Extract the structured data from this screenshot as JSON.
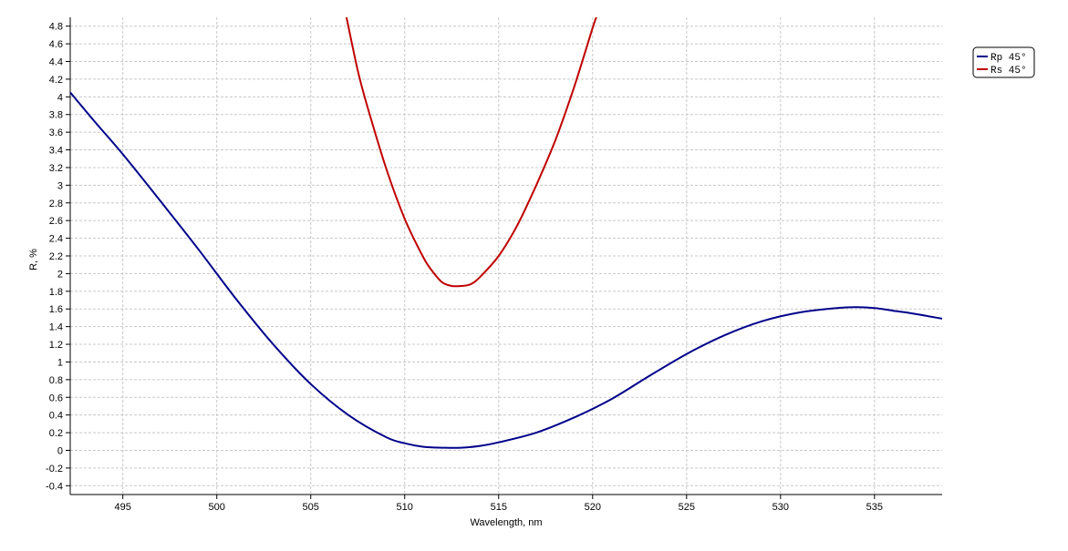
{
  "chart_data": {
    "type": "line",
    "title": "",
    "xlabel": "Wavelength, nm",
    "ylabel": "R, %",
    "xlim": [
      492.2,
      538.6
    ],
    "ylim": [
      -0.5,
      4.9
    ],
    "grid": true,
    "legend_position": "top-right",
    "x_ticks": [
      495,
      500,
      505,
      510,
      515,
      520,
      525,
      530,
      535
    ],
    "x_tick_labels": [
      "495",
      "500",
      "505",
      "510",
      "515",
      "520",
      "525",
      "530",
      "535"
    ],
    "y_ticks": [
      -0.4,
      -0.2,
      0,
      0.2,
      0.4,
      0.6,
      0.8,
      1,
      1.2,
      1.4,
      1.6,
      1.8,
      2,
      2.2,
      2.4,
      2.6,
      2.8,
      3,
      3.2,
      3.4,
      3.6,
      3.8,
      4,
      4.2,
      4.4,
      4.6,
      4.8
    ],
    "y_tick_labels": [
      "-0.4",
      "-0.2",
      "0",
      "0.2",
      "0.4",
      "0.6",
      "0.8",
      "1",
      "1.2",
      "1.4",
      "1.6",
      "1.8",
      "2",
      "2.2",
      "2.4",
      "2.6",
      "2.8",
      "3",
      "3.2",
      "3.4",
      "3.6",
      "3.8",
      "4",
      "4.2",
      "4.4",
      "4.6",
      "4.8"
    ],
    "series": [
      {
        "name": "Rp 45°",
        "color": "#00008b",
        "x": [
          492.2,
          493.5,
          495,
          497,
          499,
          501,
          503,
          505,
          507,
          509,
          510,
          511,
          512,
          513,
          514,
          515,
          517,
          519,
          521,
          523,
          525,
          527,
          529,
          531,
          533,
          534,
          535,
          536,
          537,
          538.6
        ],
        "y": [
          4.05,
          3.72,
          3.35,
          2.82,
          2.28,
          1.72,
          1.2,
          0.75,
          0.4,
          0.15,
          0.08,
          0.04,
          0.03,
          0.03,
          0.05,
          0.09,
          0.2,
          0.37,
          0.58,
          0.84,
          1.09,
          1.3,
          1.46,
          1.56,
          1.61,
          1.62,
          1.61,
          1.58,
          1.55,
          1.49
        ]
      },
      {
        "name": "Rs 45°",
        "color": "#c00000",
        "x": [
          506.9,
          507.5,
          508,
          509,
          510,
          511,
          511.5,
          512,
          512.5,
          513,
          513.5,
          514,
          515,
          516,
          517,
          518,
          519,
          520,
          520.2
        ],
        "y": [
          4.9,
          4.3,
          3.9,
          3.2,
          2.62,
          2.18,
          2.02,
          1.9,
          1.86,
          1.86,
          1.88,
          1.96,
          2.2,
          2.55,
          3.0,
          3.5,
          4.1,
          4.78,
          4.9
        ]
      }
    ]
  }
}
